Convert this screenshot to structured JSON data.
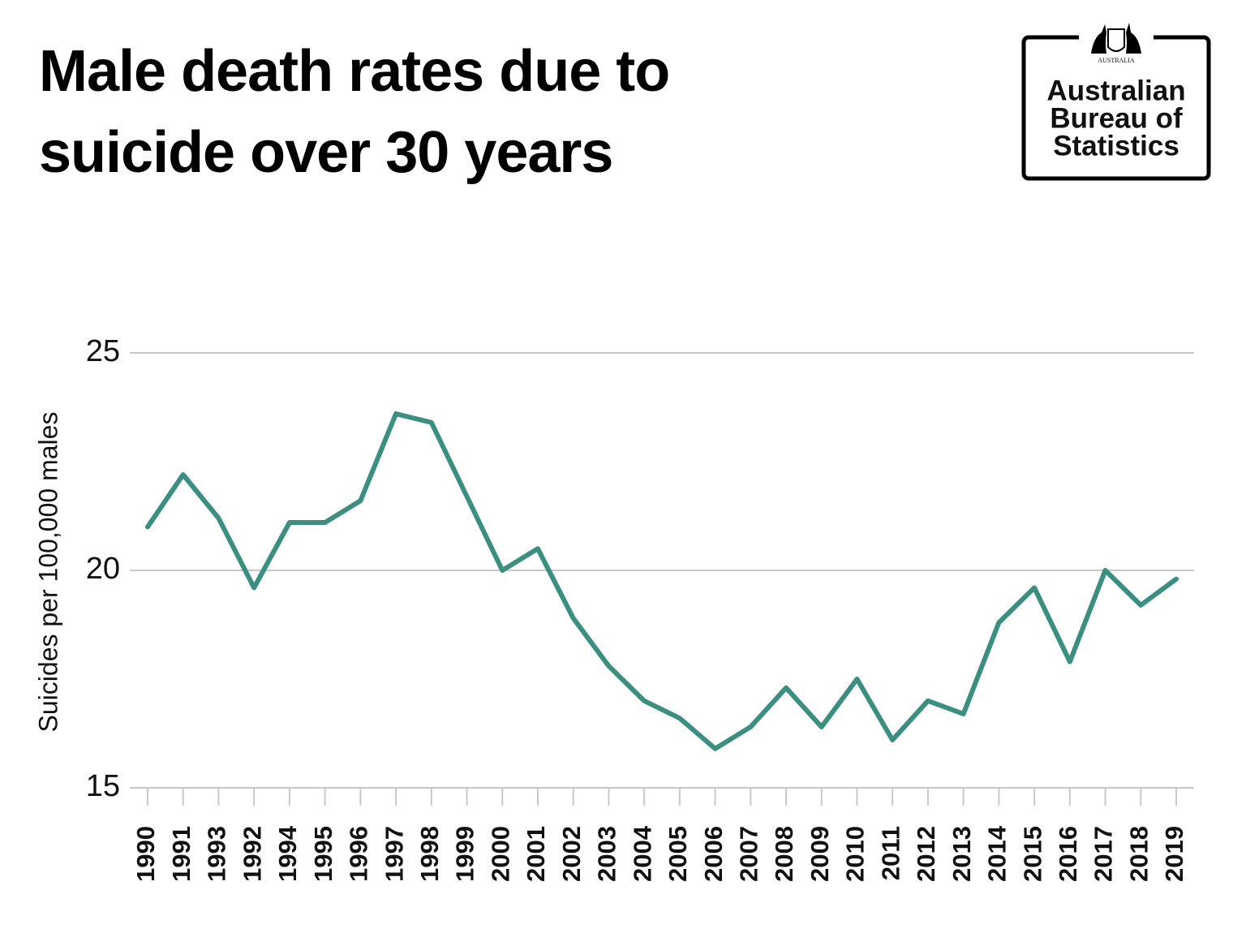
{
  "chart_data": {
    "type": "line",
    "title": "Male death rates due to suicide over 30 years",
    "y_label": "Suicides per 100,000 males",
    "categories": [
      "1990",
      "1991",
      "1993",
      "1992",
      "1994",
      "1995",
      "1996",
      "1997",
      "1998",
      "1999",
      "2000",
      "2001",
      "2002",
      "2003",
      "2004",
      "2005",
      "2006",
      "2007",
      "2008",
      "2009",
      "2010",
      "2011",
      "2012",
      "2013",
      "2014",
      "2015",
      "2016",
      "2017",
      "2018",
      "2019"
    ],
    "values": [
      21.0,
      22.2,
      21.2,
      19.6,
      21.1,
      21.1,
      21.6,
      23.6,
      23.4,
      21.7,
      20.0,
      20.5,
      18.9,
      17.8,
      17.0,
      16.6,
      15.9,
      16.4,
      17.3,
      16.4,
      17.5,
      16.1,
      17.0,
      16.7,
      18.8,
      19.6,
      17.9,
      20.0,
      19.2,
      19.8
    ],
    "color": "#3a8f80",
    "ylim": [
      15,
      25
    ],
    "yticks": [
      15,
      20,
      25
    ],
    "grid": true,
    "logo": {
      "crest_text": "AUSTRALIA",
      "lines": [
        "Australian",
        "Bureau of",
        "Statistics"
      ]
    }
  }
}
